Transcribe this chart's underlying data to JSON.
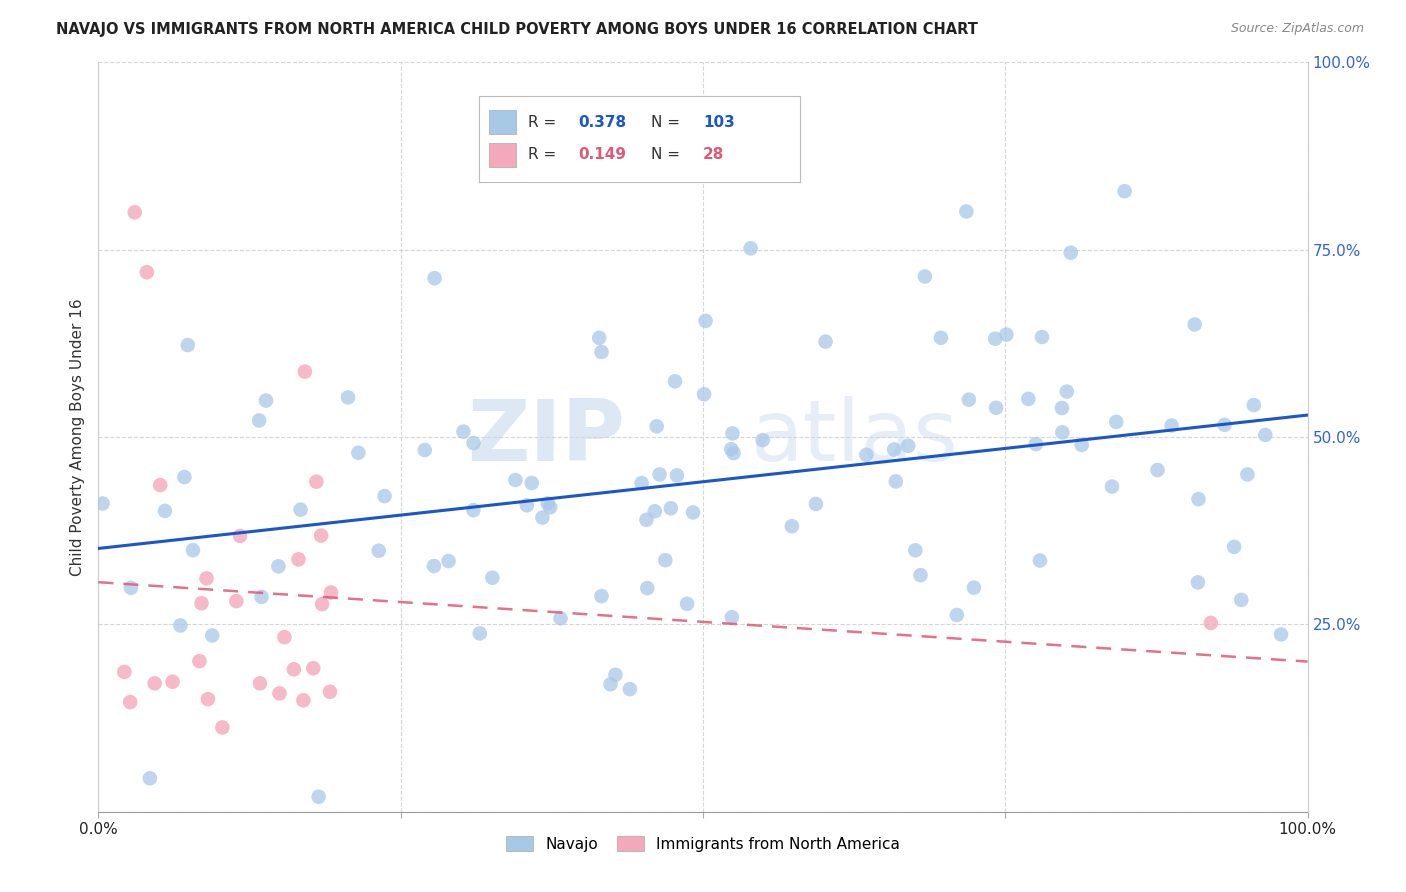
{
  "title": "NAVAJO VS IMMIGRANTS FROM NORTH AMERICA CHILD POVERTY AMONG BOYS UNDER 16 CORRELATION CHART",
  "source": "Source: ZipAtlas.com",
  "ylabel": "Child Poverty Among Boys Under 16",
  "xlim": [
    0,
    1
  ],
  "ylim": [
    0,
    1
  ],
  "xticks": [
    0.0,
    0.25,
    0.5,
    0.75,
    1.0
  ],
  "yticks": [
    0.0,
    0.25,
    0.5,
    0.75,
    1.0
  ],
  "xticklabels": [
    "0.0%",
    "",
    "",
    "",
    "100.0%"
  ],
  "right_yticklabels": [
    "25.0%",
    "50.0%",
    "75.0%",
    "100.0%"
  ],
  "navajo_color": "#a8c8e8",
  "immigrant_color": "#f4a8bc",
  "navajo_line_color": "#1a56cc",
  "immigrant_line_color": "#e05878",
  "navajo_R": 0.378,
  "navajo_N": 103,
  "immigrant_R": 0.149,
  "immigrant_N": 28,
  "legend_label_navajo": "Navajo",
  "legend_label_immigrant": "Immigrants from North America",
  "watermark_zip": "ZIP",
  "watermark_atlas": "atlas",
  "title_color": "#222222",
  "right_tick_color": "#3366cc",
  "bottom_tick_color": "#222222"
}
